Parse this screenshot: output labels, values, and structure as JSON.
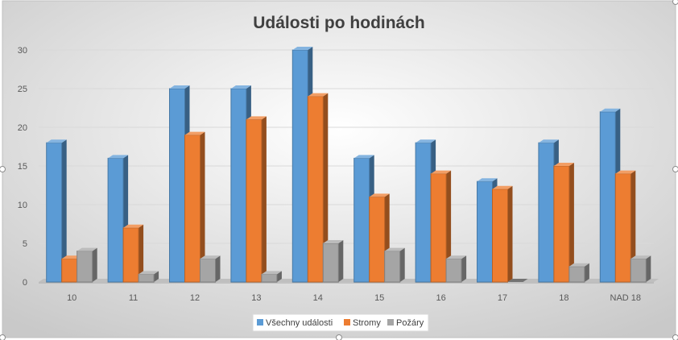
{
  "chart_data": {
    "type": "bar",
    "title": "Události po hodinách",
    "xlabel": "",
    "ylabel": "",
    "categories": [
      "10",
      "11",
      "12",
      "13",
      "14",
      "15",
      "16",
      "17",
      "18",
      "NAD 18"
    ],
    "series": [
      {
        "name": "Všechny události",
        "values": [
          18,
          16,
          25,
          25,
          30,
          16,
          18,
          13,
          18,
          22
        ],
        "color": "#5B9BD5"
      },
      {
        "name": "Stromy",
        "values": [
          3,
          7,
          19,
          21,
          24,
          11,
          14,
          12,
          15,
          14
        ],
        "color": "#ED7D31"
      },
      {
        "name": "Požáry",
        "values": [
          4,
          1,
          3,
          1,
          5,
          4,
          3,
          0,
          2,
          3
        ],
        "color": "#A5A5A5"
      }
    ],
    "ylim": [
      0,
      30
    ],
    "yticks": [
      0,
      5,
      10,
      15,
      20,
      25,
      30
    ],
    "grid": true,
    "legend_position": "bottom",
    "style": "3d-clustered-column"
  }
}
